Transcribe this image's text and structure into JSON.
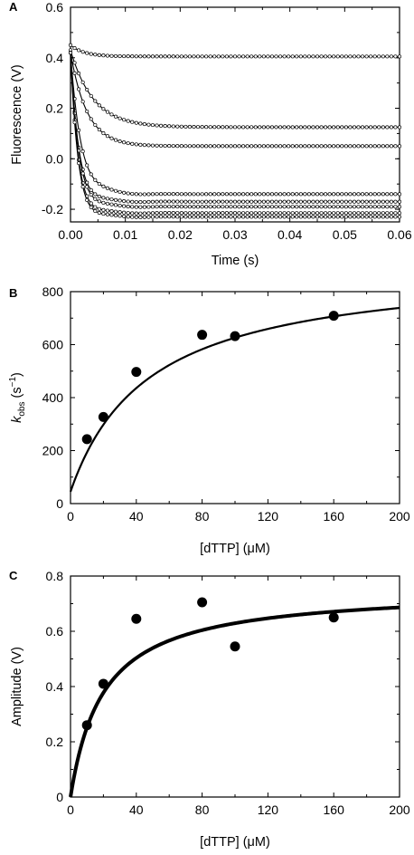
{
  "chart_data": [
    {
      "panel": "A",
      "type": "line",
      "xlabel": "Time (s)",
      "ylabel": "Fluorescence (V)",
      "xlim": [
        0,
        0.06
      ],
      "ylim": [
        -0.25,
        0.6
      ],
      "xticks": [
        "0.00",
        "0.01",
        "0.02",
        "0.03",
        "0.04",
        "0.05",
        "0.06"
      ],
      "yticks": [
        "-0.2",
        "0.0",
        "0.2",
        "0.4",
        "0.6"
      ],
      "x_tick_values": [
        0,
        0.01,
        0.02,
        0.03,
        0.04,
        0.05,
        0.06
      ],
      "y_tick_values": [
        -0.2,
        0.0,
        0.2,
        0.4,
        0.6
      ],
      "series": [
        {
          "start": 0.45,
          "plateau": 0.405,
          "k": 400,
          "dip": 0.0
        },
        {
          "start": 0.43,
          "plateau": 0.125,
          "k": 240,
          "dip": 0.0
        },
        {
          "start": 0.42,
          "plateau": 0.05,
          "k": 330,
          "dip": 0.0
        },
        {
          "start": 0.42,
          "plateau": -0.14,
          "k": 500,
          "dip": 0.02
        },
        {
          "start": 0.42,
          "plateau": -0.17,
          "k": 640,
          "dip": 0.02
        },
        {
          "start": 0.42,
          "plateau": -0.19,
          "k": 640,
          "dip": 0.02
        },
        {
          "start": 0.42,
          "plateau": -0.215,
          "k": 700,
          "dip": 0.02
        },
        {
          "start": 0.42,
          "plateau": -0.23,
          "k": 710,
          "dip": 0.02
        }
      ]
    },
    {
      "panel": "B",
      "type": "scatter",
      "xlabel": "[dTTP] (μM)",
      "ylabel_main": "k",
      "ylabel_sub": "obs",
      "ylabel_rest": "(s",
      "ylabel_sup": "−1",
      "ylabel_end": ")",
      "xlim": [
        0,
        200
      ],
      "ylim": [
        0,
        800
      ],
      "xticks": [
        "0",
        "40",
        "80",
        "120",
        "160",
        "200"
      ],
      "yticks": [
        "0",
        "200",
        "400",
        "600",
        "800"
      ],
      "x_tick_values": [
        0,
        40,
        80,
        120,
        160,
        200
      ],
      "y_tick_values": [
        0,
        200,
        400,
        600,
        800
      ],
      "x": [
        10,
        20,
        40,
        80,
        100,
        160
      ],
      "y": [
        243,
        327,
        497,
        637,
        632,
        709
      ],
      "fit": {
        "model": "hyperbola",
        "offset": 45,
        "amplitude": 860,
        "kd": 48
      }
    },
    {
      "panel": "C",
      "type": "scatter",
      "xlabel": "[dTTP] (μM)",
      "ylabel": "Amplitude (V)",
      "xlim": [
        0,
        200
      ],
      "ylim": [
        0,
        0.8
      ],
      "xticks": [
        "0",
        "40",
        "80",
        "120",
        "160",
        "200"
      ],
      "yticks": [
        "0",
        "0.2",
        "0.4",
        "0.6",
        "0.8"
      ],
      "x_tick_values": [
        0,
        40,
        80,
        120,
        160,
        200
      ],
      "y_tick_values": [
        0,
        0.2,
        0.4,
        0.6,
        0.8
      ],
      "x": [
        10,
        20,
        40,
        80,
        100,
        160
      ],
      "y": [
        0.26,
        0.41,
        0.645,
        0.705,
        0.545,
        0.65
      ],
      "fit": {
        "model": "hyperbola",
        "offset": 0,
        "amplitude": 0.755,
        "kd": 20
      }
    }
  ]
}
